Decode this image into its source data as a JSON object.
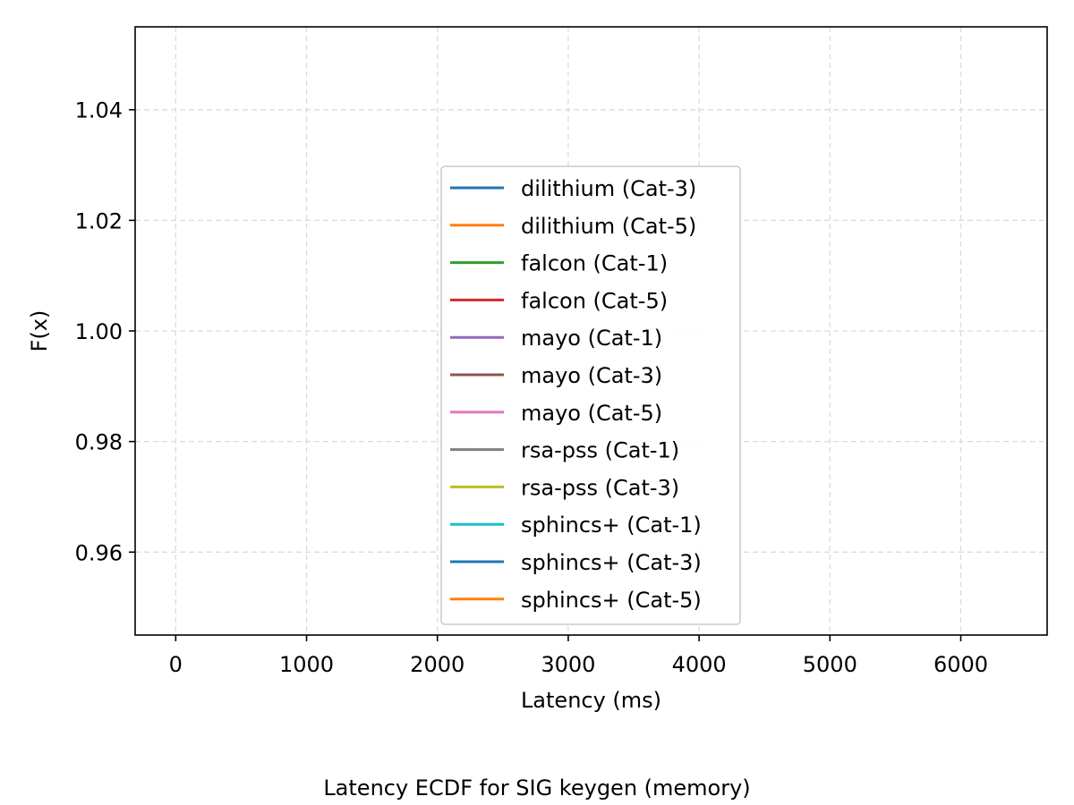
{
  "chart_data": {
    "type": "line",
    "title": "",
    "caption": "Latency ECDF for SIG keygen (memory)",
    "xlabel": "Latency (ms)",
    "ylabel": "F(x)",
    "xlim": [
      -310,
      6660
    ],
    "ylim": [
      0.945,
      1.055
    ],
    "xticks": [
      0,
      1000,
      2000,
      3000,
      4000,
      5000,
      6000
    ],
    "xtick_labels": [
      "0",
      "1000",
      "2000",
      "3000",
      "4000",
      "5000",
      "6000"
    ],
    "yticks": [
      0.96,
      0.98,
      1.0,
      1.02,
      1.04
    ],
    "ytick_labels": [
      "0.96",
      "0.98",
      "1.00",
      "1.02",
      "1.04"
    ],
    "grid": true,
    "legend_position": "center",
    "series": [
      {
        "name": "dilithium (Cat-3)",
        "color": "#1f77b4",
        "x": [],
        "y": []
      },
      {
        "name": "dilithium (Cat-5)",
        "color": "#ff7f0e",
        "x": [],
        "y": []
      },
      {
        "name": "falcon (Cat-1)",
        "color": "#2ca02c",
        "x": [],
        "y": []
      },
      {
        "name": "falcon (Cat-5)",
        "color": "#d62728",
        "x": [],
        "y": []
      },
      {
        "name": "mayo (Cat-1)",
        "color": "#9467bd",
        "x": [],
        "y": []
      },
      {
        "name": "mayo (Cat-3)",
        "color": "#8c564b",
        "x": [],
        "y": []
      },
      {
        "name": "mayo (Cat-5)",
        "color": "#e377c2",
        "x": [],
        "y": []
      },
      {
        "name": "rsa-pss (Cat-1)",
        "color": "#7f7f7f",
        "x": [],
        "y": []
      },
      {
        "name": "rsa-pss (Cat-3)",
        "color": "#bcbd22",
        "x": [],
        "y": []
      },
      {
        "name": "sphincs+ (Cat-1)",
        "color": "#17becf",
        "x": [],
        "y": []
      },
      {
        "name": "sphincs+ (Cat-3)",
        "color": "#1f77b4",
        "x": [],
        "y": []
      },
      {
        "name": "sphincs+ (Cat-5)",
        "color": "#ff7f0e",
        "x": [],
        "y": []
      }
    ]
  }
}
